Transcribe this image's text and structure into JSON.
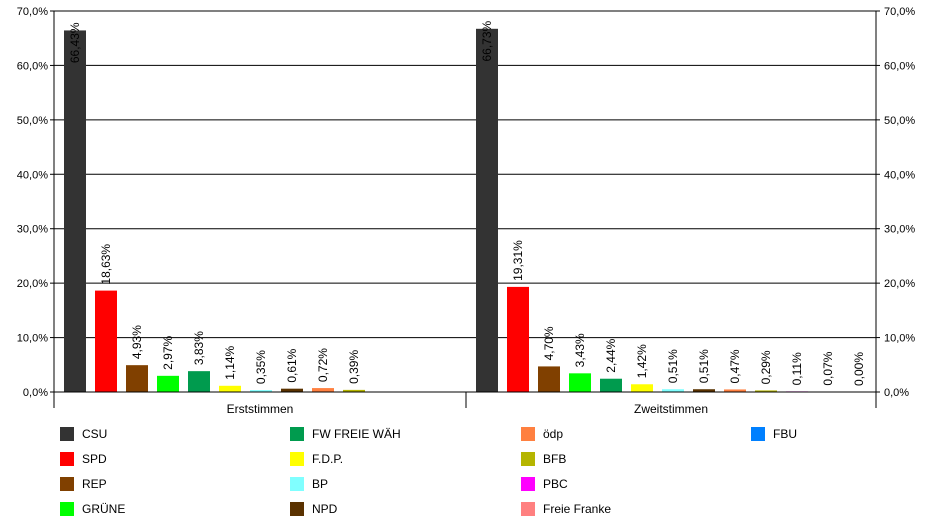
{
  "chart_data": {
    "type": "bar",
    "ylim": [
      0,
      70
    ],
    "y_ticks": [
      "0,0%",
      "10,0%",
      "20,0%",
      "30,0%",
      "40,0%",
      "50,0%",
      "60,0%",
      "70,0%"
    ],
    "grid": true,
    "legend_position": "bottom",
    "groups": [
      {
        "name": "Erststimmen",
        "values": [
          66.43,
          18.63,
          4.93,
          2.97,
          3.83,
          1.14,
          0.35,
          0.61,
          0.72,
          0.39
        ],
        "labels": [
          "66,43%",
          "18,63%",
          "4,93%",
          "2,97%",
          "3,83%",
          "1,14%",
          "0,35%",
          "0,61%",
          "0,72%",
          "0,39%"
        ],
        "series_index": [
          0,
          1,
          2,
          3,
          4,
          5,
          6,
          7,
          8,
          9
        ]
      },
      {
        "name": "Zweitstimmen",
        "values": [
          66.73,
          19.31,
          4.7,
          3.43,
          2.44,
          1.42,
          0.51,
          0.51,
          0.47,
          0.29,
          0.11,
          0.07,
          0.0
        ],
        "labels": [
          "66,73%",
          "19,31%",
          "4,70%",
          "3,43%",
          "2,44%",
          "1,42%",
          "0,51%",
          "0,51%",
          "0,47%",
          "0,29%",
          "0,11%",
          "0,07%",
          "0,00%"
        ],
        "series_index": [
          0,
          1,
          2,
          3,
          4,
          5,
          6,
          7,
          8,
          9,
          10,
          11,
          12
        ]
      }
    ],
    "series": [
      {
        "name": "CSU",
        "color": "#333333"
      },
      {
        "name": "SPD",
        "color": "#ff0000"
      },
      {
        "name": "REP",
        "color": "#804000"
      },
      {
        "name": "GRÜNE",
        "color": "#00ff00"
      },
      {
        "name": "FW FREIE WÄH",
        "color": "#009b4e"
      },
      {
        "name": "F.D.P.",
        "color": "#ffff00"
      },
      {
        "name": "BP",
        "color": "#80ffff"
      },
      {
        "name": "NPD",
        "color": "#5a3200"
      },
      {
        "name": "ödp",
        "color": "#ff8040"
      },
      {
        "name": "BFB",
        "color": "#b5b500"
      },
      {
        "name": "PBC",
        "color": "#ff00ff"
      },
      {
        "name": "Freie Franke",
        "color": "#ff8080"
      },
      {
        "name": "FBU",
        "color": "#0080ff"
      }
    ]
  }
}
